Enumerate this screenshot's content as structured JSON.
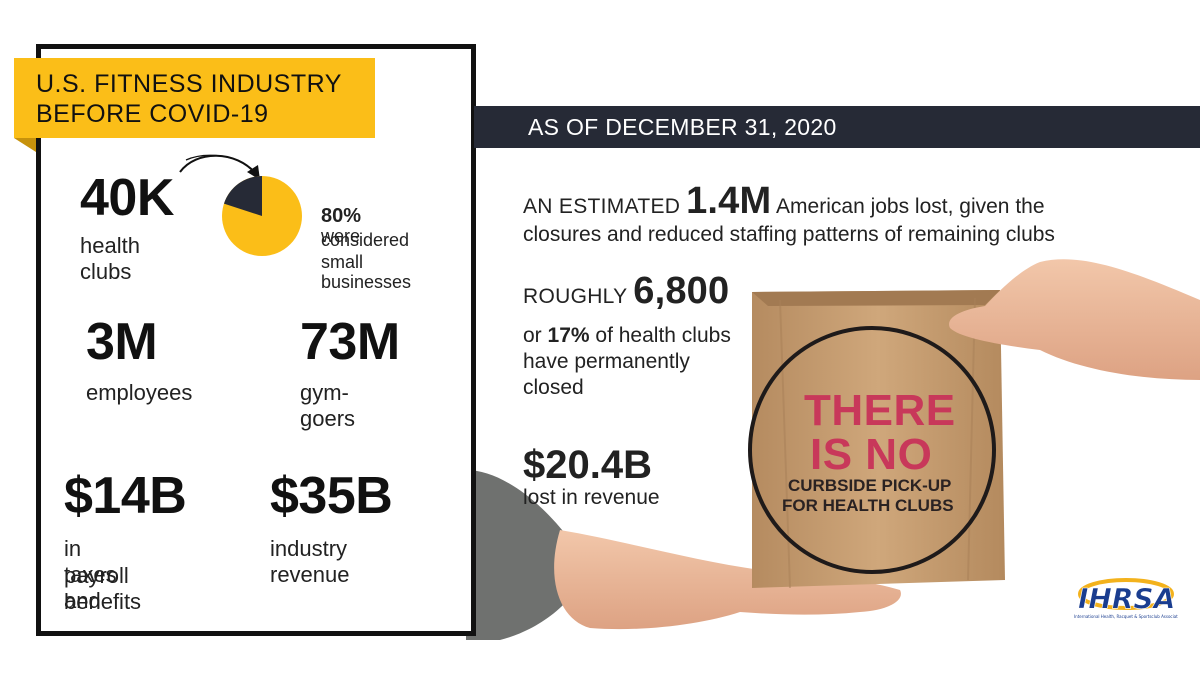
{
  "left_panel": {
    "title_line1": "U.S. FITNESS INDUSTRY",
    "title_line2": "BEFORE COVID-19",
    "stats": {
      "clubs_value": "40K",
      "clubs_label": "health clubs",
      "small_business_percent": "80%",
      "small_business_text1": "were",
      "small_business_text2": "considered",
      "small_business_text3": "small businesses",
      "small_business_fraction": 0.8,
      "employees_value": "3M",
      "employees_label": "employees",
      "gymgoers_value": "73M",
      "gymgoers_label": "gym-goers",
      "taxes_value": "$14B",
      "taxes_label_line1": "in taxes and",
      "taxes_label_line2": "payroll benefits",
      "revenue_value": "$35B",
      "revenue_label": "industry revenue"
    }
  },
  "right_panel": {
    "date_bar": "AS OF DECEMBER 31, 2020",
    "jobs_prefix": "AN ESTIMATED",
    "jobs_value": "1.4M",
    "jobs_suffix": "American jobs lost, given the",
    "jobs_line2": "closures and reduced staffing patterns of remaining clubs",
    "closed_prefix": "ROUGHLY",
    "closed_value": "6,800",
    "closed_line2_a": "or",
    "closed_line2_percent": "17%",
    "closed_line2_b": "of health clubs",
    "closed_line3": "have permanently",
    "closed_line4": "closed",
    "revenue_lost_value": "$20.4B",
    "revenue_lost_label": "lost in revenue"
  },
  "bag": {
    "line1": "THERE",
    "line2": "IS NO",
    "line3": "CURBSIDE PICK-UP",
    "line4": "FOR HEALTH CLUBS"
  },
  "logo": {
    "name": "IHRSA",
    "tagline": "International Health, Racquet & Sportsclub Association"
  },
  "colors": {
    "accent_yellow": "#fbbe18",
    "navy": "#262a36",
    "bag_brown": "#c69f74",
    "bag_text_red": "#c8385a",
    "logo_blue": "#1a3d8f"
  }
}
